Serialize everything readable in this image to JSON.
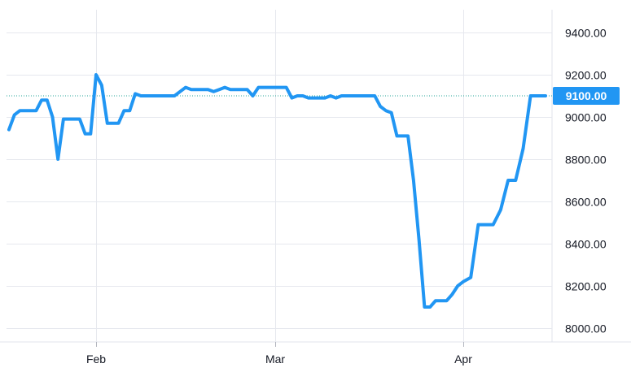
{
  "chart_data": {
    "type": "line",
    "title": "",
    "xlabel": "",
    "ylabel": "",
    "x_tick_labels": [
      "Feb",
      "Mar",
      "Apr"
    ],
    "y_tick_labels": [
      "8000.00",
      "8200.00",
      "8400.00",
      "8600.00",
      "8800.00",
      "9000.00",
      "9200.00",
      "9400.00"
    ],
    "ylim": [
      7950,
      9500
    ],
    "grid": true,
    "last_value_label": "9100.00",
    "series": [
      {
        "color": "#2196f3",
        "values": [
          8940,
          9010,
          9030,
          9030,
          9030,
          9030,
          9080,
          9080,
          9000,
          8800,
          8990,
          8990,
          8990,
          8990,
          8920,
          8920,
          9200,
          9150,
          8970,
          8970,
          8970,
          9030,
          9030,
          9110,
          9100,
          9100,
          9100,
          9100,
          9100,
          9100,
          9100,
          9120,
          9140,
          9130,
          9130,
          9130,
          9130,
          9120,
          9130,
          9140,
          9130,
          9130,
          9130,
          9130,
          9100,
          9140,
          9140,
          9140,
          9140,
          9140,
          9140,
          9090,
          9100,
          9100,
          9090,
          9090,
          9090,
          9090,
          9100,
          9090,
          9100,
          9100,
          9100,
          9100,
          9100,
          9100,
          9100,
          9050,
          9030,
          9020,
          8910,
          8910,
          8910,
          8700,
          8420,
          8100,
          8100,
          8130,
          8130,
          8130,
          8160,
          8200,
          8220,
          8240,
          8490,
          8490,
          8490,
          8560,
          8700,
          8700,
          8850,
          9100,
          9100,
          9100
        ]
      }
    ],
    "reference_line": {
      "value": 9100,
      "color": "#26a69a",
      "style": "dotted"
    }
  }
}
